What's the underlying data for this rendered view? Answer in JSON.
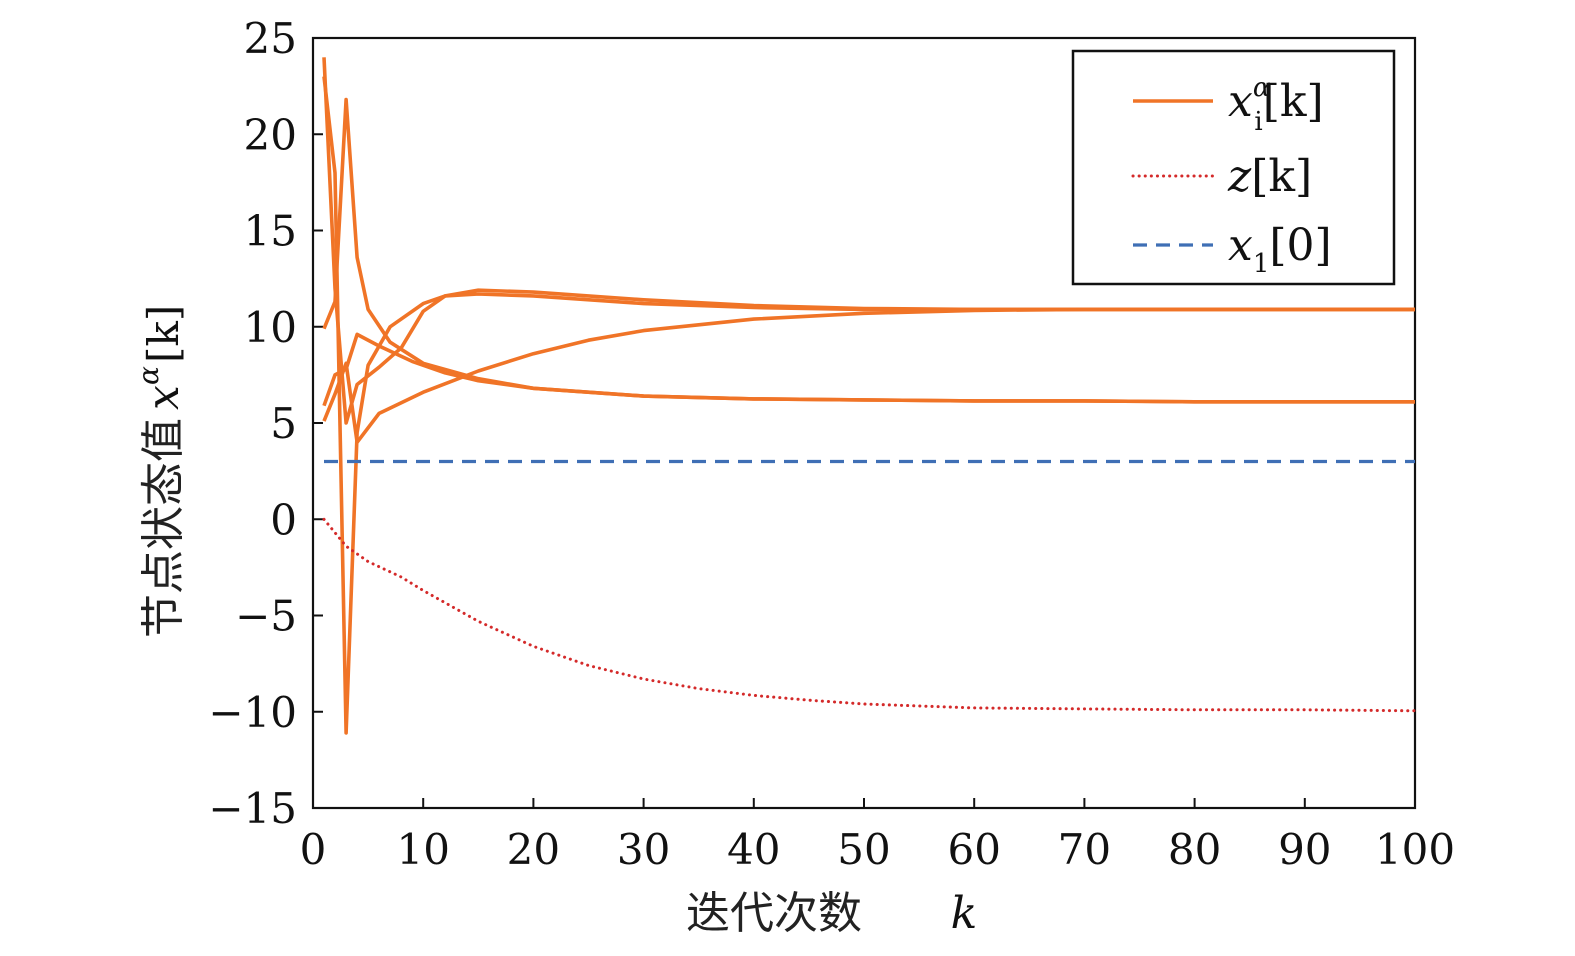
{
  "chart_data": {
    "type": "line",
    "xlabel": "迭代次数",
    "xlabel_var": "k",
    "ylabel": "节点状态值",
    "ylabel_var": "x",
    "ylabel_sup": "α",
    "ylabel_bracket": "[k]",
    "xlim": [
      0,
      100
    ],
    "ylim": [
      -15,
      25
    ],
    "xticks": [
      0,
      10,
      20,
      30,
      40,
      50,
      60,
      70,
      80,
      90,
      100
    ],
    "yticks": [
      -15,
      -10,
      -5,
      0,
      5,
      10,
      15,
      20,
      25
    ],
    "legend_position": "top-right",
    "legend": [
      {
        "base": "x",
        "sub": "i",
        "sup": "α",
        "bracket": "[k]",
        "style": "solid",
        "color": "#F07427"
      },
      {
        "base": "z",
        "sub": "",
        "sup": "",
        "bracket": "[k]",
        "style": "dotted",
        "color": "#D42A2A"
      },
      {
        "base": "x",
        "sub": "1",
        "sup": "",
        "bracket": "[0]",
        "style": "dashed",
        "color": "#3F6FB5"
      }
    ],
    "series": [
      {
        "group": "x_i^α[k]",
        "color": "#F07427",
        "style": "solid",
        "points": [
          [
            1,
            24
          ],
          [
            2,
            12
          ],
          [
            3,
            5
          ],
          [
            4,
            7
          ],
          [
            6,
            7.9
          ],
          [
            8,
            8.9
          ],
          [
            10,
            10.8
          ],
          [
            12,
            11.6
          ],
          [
            15,
            11.9
          ],
          [
            20,
            11.8
          ],
          [
            30,
            11.4
          ],
          [
            40,
            11.1
          ],
          [
            50,
            10.95
          ],
          [
            60,
            10.9
          ],
          [
            70,
            10.9
          ],
          [
            80,
            10.9
          ],
          [
            90,
            10.9
          ],
          [
            100,
            10.9
          ]
        ]
      },
      {
        "group": "x_i^α[k]",
        "color": "#F07427",
        "style": "solid",
        "points": [
          [
            1,
            23
          ],
          [
            2,
            18
          ],
          [
            3,
            -11.1
          ],
          [
            4,
            4.5
          ],
          [
            5,
            8
          ],
          [
            7,
            10
          ],
          [
            10,
            11.2
          ],
          [
            12,
            11.6
          ],
          [
            15,
            11.7
          ],
          [
            20,
            11.6
          ],
          [
            30,
            11.2
          ],
          [
            40,
            11
          ],
          [
            50,
            10.9
          ],
          [
            60,
            10.9
          ],
          [
            70,
            10.9
          ],
          [
            80,
            10.9
          ],
          [
            90,
            10.9
          ],
          [
            100,
            10.9
          ]
        ]
      },
      {
        "group": "x_i^α[k]",
        "color": "#F07427",
        "style": "solid",
        "points": [
          [
            1,
            9.9
          ],
          [
            2,
            11.3
          ],
          [
            3,
            21.8
          ],
          [
            4,
            13.6
          ],
          [
            5,
            10.9
          ],
          [
            7,
            9.2
          ],
          [
            10,
            8.1
          ],
          [
            15,
            7.3
          ],
          [
            20,
            6.8
          ],
          [
            30,
            6.4
          ],
          [
            40,
            6.25
          ],
          [
            50,
            6.2
          ],
          [
            60,
            6.15
          ],
          [
            70,
            6.15
          ],
          [
            80,
            6.1
          ],
          [
            90,
            6.1
          ],
          [
            100,
            6.1
          ]
        ]
      },
      {
        "group": "x_i^α[k]",
        "color": "#F07427",
        "style": "solid",
        "points": [
          [
            1,
            5.9
          ],
          [
            2,
            7.5
          ],
          [
            3,
            7.8
          ],
          [
            4,
            9.6
          ],
          [
            6,
            9
          ],
          [
            9,
            8.2
          ],
          [
            12,
            7.6
          ],
          [
            15,
            7.2
          ],
          [
            20,
            6.8
          ],
          [
            30,
            6.4
          ],
          [
            40,
            6.25
          ],
          [
            50,
            6.2
          ],
          [
            60,
            6.15
          ],
          [
            70,
            6.15
          ],
          [
            80,
            6.1
          ],
          [
            90,
            6.1
          ],
          [
            100,
            6.1
          ]
        ]
      },
      {
        "group": "x_i^α[k]",
        "color": "#F07427",
        "style": "solid",
        "points": [
          [
            1,
            5.1
          ],
          [
            2,
            6.5
          ],
          [
            3,
            8.1
          ],
          [
            4,
            4
          ],
          [
            6,
            5.5
          ],
          [
            10,
            6.6
          ],
          [
            15,
            7.7
          ],
          [
            20,
            8.6
          ],
          [
            25,
            9.3
          ],
          [
            30,
            9.8
          ],
          [
            40,
            10.4
          ],
          [
            50,
            10.7
          ],
          [
            60,
            10.85
          ],
          [
            70,
            10.9
          ],
          [
            80,
            10.9
          ],
          [
            90,
            10.9
          ],
          [
            100,
            10.9
          ]
        ]
      },
      {
        "group": "z[k]",
        "color": "#D42A2A",
        "style": "dotted",
        "points": [
          [
            1,
            0
          ],
          [
            3,
            -1.4
          ],
          [
            5,
            -2.2
          ],
          [
            8,
            -3
          ],
          [
            10,
            -3.7
          ],
          [
            15,
            -5.3
          ],
          [
            20,
            -6.6
          ],
          [
            25,
            -7.6
          ],
          [
            30,
            -8.3
          ],
          [
            35,
            -8.8
          ],
          [
            40,
            -9.15
          ],
          [
            45,
            -9.4
          ],
          [
            50,
            -9.6
          ],
          [
            60,
            -9.8
          ],
          [
            70,
            -9.85
          ],
          [
            80,
            -9.9
          ],
          [
            90,
            -9.9
          ],
          [
            100,
            -9.95
          ]
        ]
      },
      {
        "group": "x_1[0]",
        "color": "#3F6FB5",
        "style": "dashed",
        "points": [
          [
            1,
            3
          ],
          [
            100,
            3
          ]
        ]
      }
    ]
  }
}
